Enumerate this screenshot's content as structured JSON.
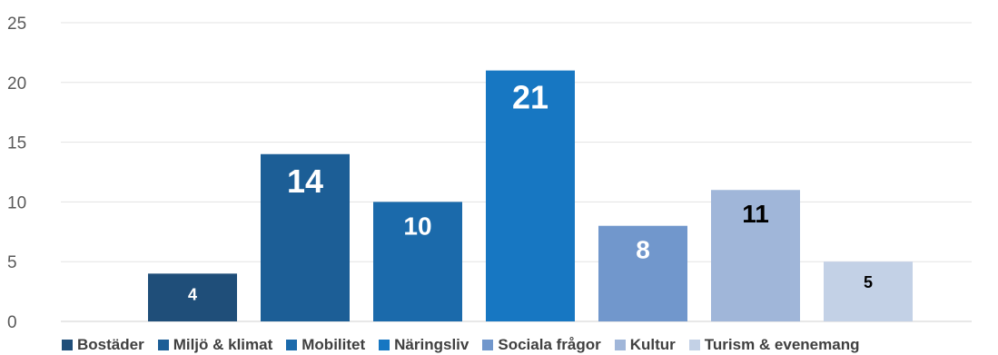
{
  "chart_data": {
    "type": "bar",
    "categories": [
      "Bostäder",
      "Miljö & klimat",
      "Mobilitet",
      "Näringsliv",
      "Sociala frågor",
      "Kultur",
      "Turism & evenemang"
    ],
    "values": [
      4,
      14,
      10,
      21,
      8,
      11,
      5
    ],
    "colors": [
      "#1F4E79",
      "#1C5E96",
      "#1B6AAB",
      "#1777C2",
      "#7197CC",
      "#A0B6D9",
      "#C3D1E6"
    ],
    "label_colors": [
      "#ffffff",
      "#ffffff",
      "#ffffff",
      "#ffffff",
      "#ffffff",
      "#000000",
      "#000000"
    ],
    "ylim": [
      0,
      25
    ],
    "yticks": [
      "0",
      "5",
      "10",
      "15",
      "20",
      "25"
    ],
    "grid": true,
    "legend_position": "bottom",
    "title": "",
    "xlabel": "",
    "ylabel": ""
  }
}
